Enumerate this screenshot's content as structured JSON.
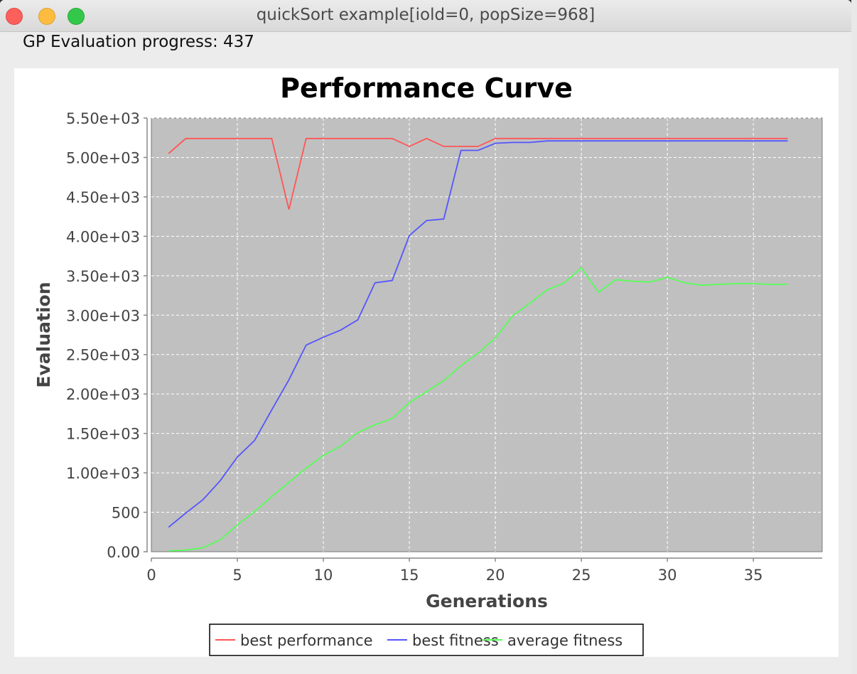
{
  "window": {
    "title": "quickSort example[iold=0, popSize=968]",
    "progress_text": "GP Evaluation progress: 437"
  },
  "chart_data": {
    "type": "line",
    "title": "Performance Curve",
    "xlabel": "Generations",
    "ylabel": "Evaluation",
    "xlim": [
      0,
      39
    ],
    "ylim": [
      0,
      5500
    ],
    "xticks": [
      0,
      5,
      10,
      15,
      20,
      25,
      30,
      35
    ],
    "yticks": [
      0,
      500,
      1000,
      1500,
      2000,
      2500,
      3000,
      3500,
      4000,
      4500,
      5000,
      5500
    ],
    "ytick_labels": [
      "0.00",
      "500",
      "1.00e+03",
      "1.50e+03",
      "2.00e+03",
      "2.50e+03",
      "3.00e+03",
      "3.50e+03",
      "4.00e+03",
      "4.50e+03",
      "5.00e+03",
      "5.50e+03"
    ],
    "grid": true,
    "plot_background": "#c0c0c0",
    "legend_position": "bottom-center",
    "x": [
      1,
      2,
      3,
      4,
      5,
      6,
      7,
      8,
      9,
      10,
      11,
      12,
      13,
      14,
      15,
      16,
      17,
      18,
      19,
      20,
      21,
      22,
      23,
      24,
      25,
      26,
      27,
      28,
      29,
      30,
      31,
      32,
      33,
      34,
      35,
      36,
      37
    ],
    "series": [
      {
        "name": "best performance",
        "color": "#ff5555",
        "values": [
          5050,
          5240,
          5240,
          5240,
          5240,
          5240,
          5240,
          4340,
          5240,
          5240,
          5240,
          5240,
          5240,
          5240,
          5140,
          5240,
          5140,
          5140,
          5140,
          5240,
          5240,
          5240,
          5240,
          5240,
          5240,
          5240,
          5240,
          5240,
          5240,
          5240,
          5240,
          5240,
          5240,
          5240,
          5240,
          5240,
          5240
        ]
      },
      {
        "name": "best fitness",
        "color": "#5555ff",
        "values": [
          310,
          490,
          660,
          900,
          1200,
          1410,
          1800,
          2180,
          2620,
          2720,
          2810,
          2940,
          3410,
          3440,
          4010,
          4200,
          4220,
          5090,
          5090,
          5180,
          5190,
          5190,
          5210,
          5210,
          5210,
          5210,
          5210,
          5210,
          5210,
          5210,
          5210,
          5210,
          5210,
          5210,
          5210,
          5210,
          5210
        ]
      },
      {
        "name": "average fitness",
        "color": "#55ff55",
        "values": [
          10,
          20,
          50,
          150,
          340,
          510,
          700,
          880,
          1060,
          1220,
          1340,
          1510,
          1610,
          1690,
          1890,
          2030,
          2170,
          2360,
          2520,
          2710,
          2990,
          3150,
          3320,
          3410,
          3600,
          3290,
          3450,
          3430,
          3420,
          3480,
          3410,
          3380,
          3390,
          3400,
          3400,
          3390,
          3390
        ]
      }
    ]
  }
}
